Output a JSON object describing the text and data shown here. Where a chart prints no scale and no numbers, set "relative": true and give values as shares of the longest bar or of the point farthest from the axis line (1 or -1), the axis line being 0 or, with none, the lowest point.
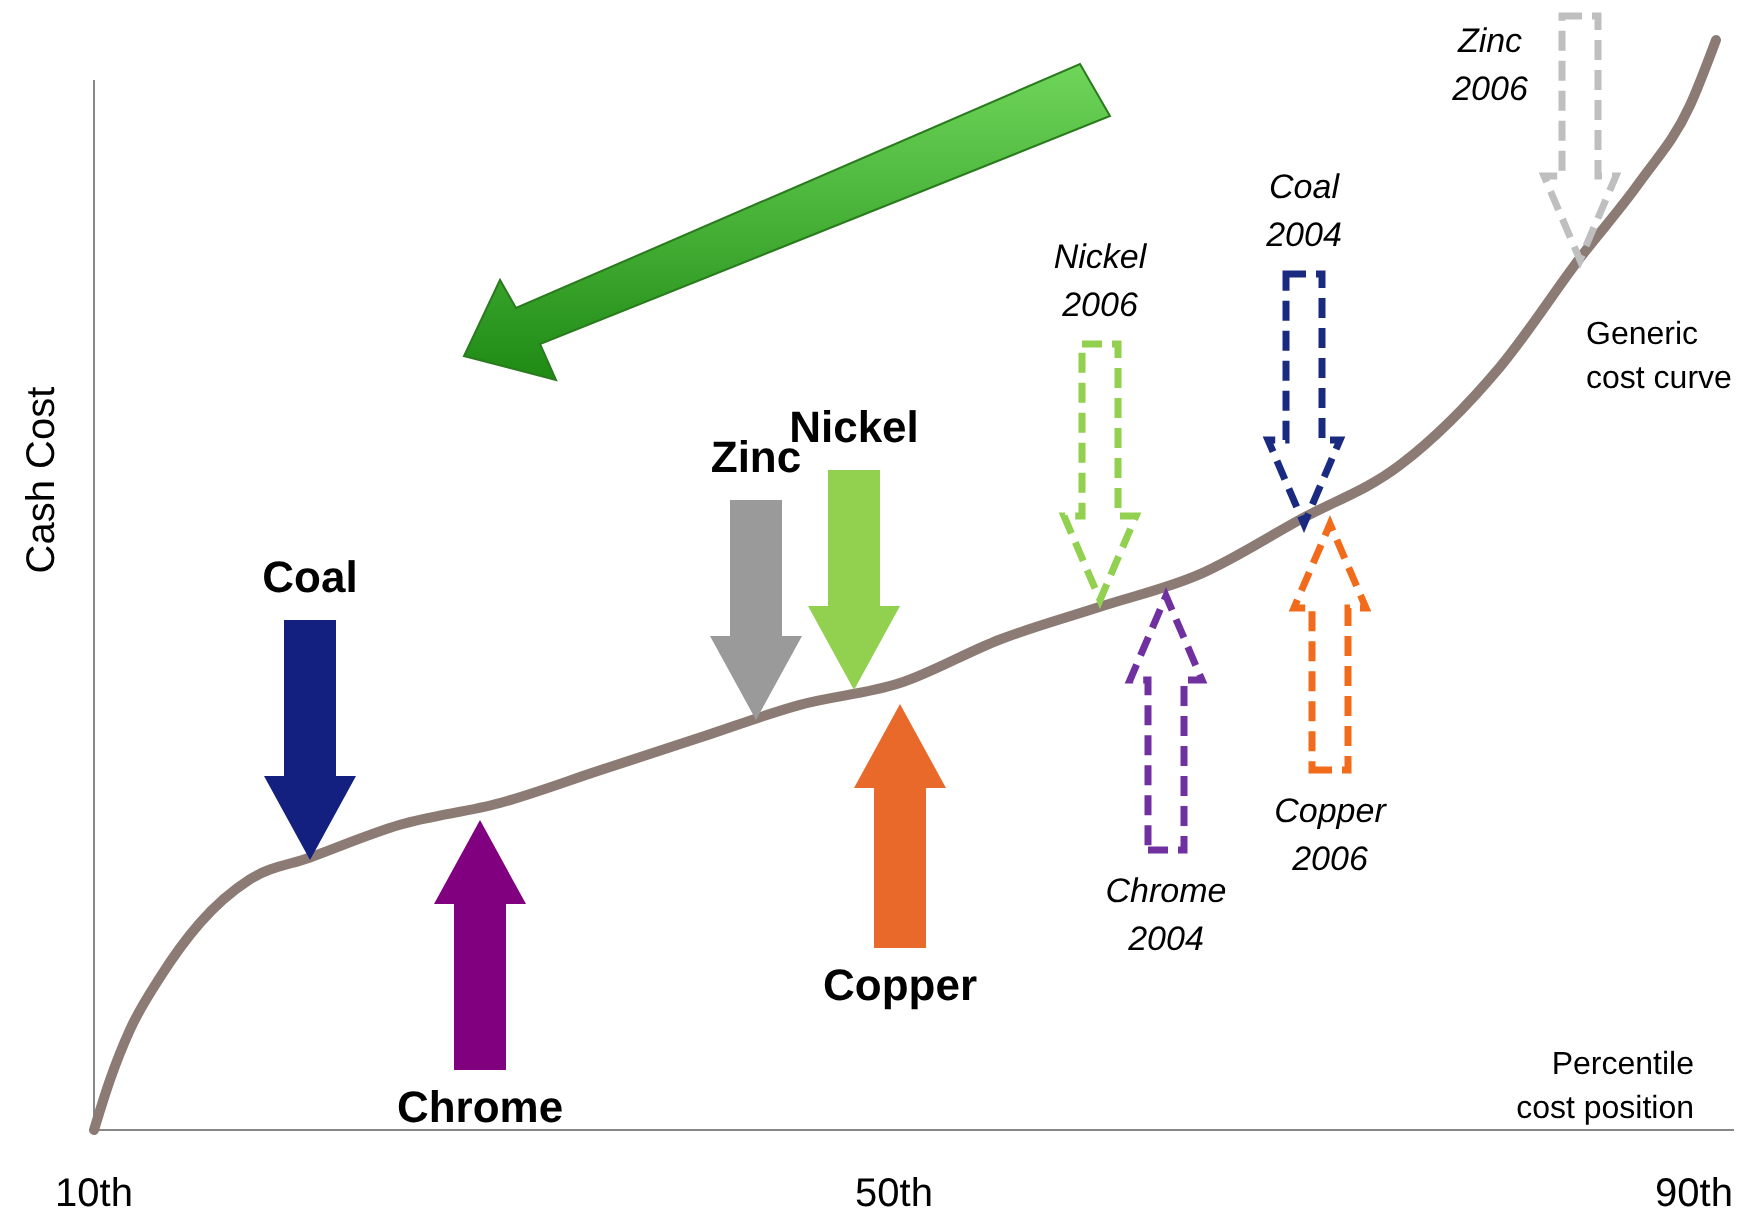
{
  "chart_data": {
    "type": "line",
    "relative": true,
    "xlabel": "Percentile cost position",
    "ylabel": "Cash Cost",
    "xlim": [
      10,
      92
    ],
    "xticks": [
      {
        "value": 10,
        "label": "10th"
      },
      {
        "value": 50,
        "label": "50th"
      },
      {
        "value": 90,
        "label": "90th"
      }
    ],
    "series": [
      {
        "name": "Generic cost curve",
        "color": "#8c7b74",
        "x": [
          10,
          10.8,
          11.8,
          13.3,
          15.3,
          17.8,
          20.8,
          25.3,
          30.3,
          35.3,
          40.3,
          45.3,
          50.3,
          55.3,
          60.3,
          65.3,
          70.3,
          75.3,
          80.3,
          84.3,
          87.3,
          89.8,
          91.1
        ],
        "values": [
          0,
          0.046,
          0.092,
          0.14,
          0.19,
          0.23,
          0.25,
          0.28,
          0.3,
          0.33,
          0.36,
          0.39,
          0.41,
          0.45,
          0.48,
          0.51,
          0.56,
          0.61,
          0.7,
          0.8,
          0.87,
          0.94,
          1
        ]
      }
    ],
    "annotations": [
      "Coal",
      "Chrome",
      "Zinc",
      "Nickel",
      "Copper",
      "Nickel 2006",
      "Chrome 2004",
      "Coal 2004",
      "Copper 2006",
      "Zinc 2006"
    ]
  }
}
